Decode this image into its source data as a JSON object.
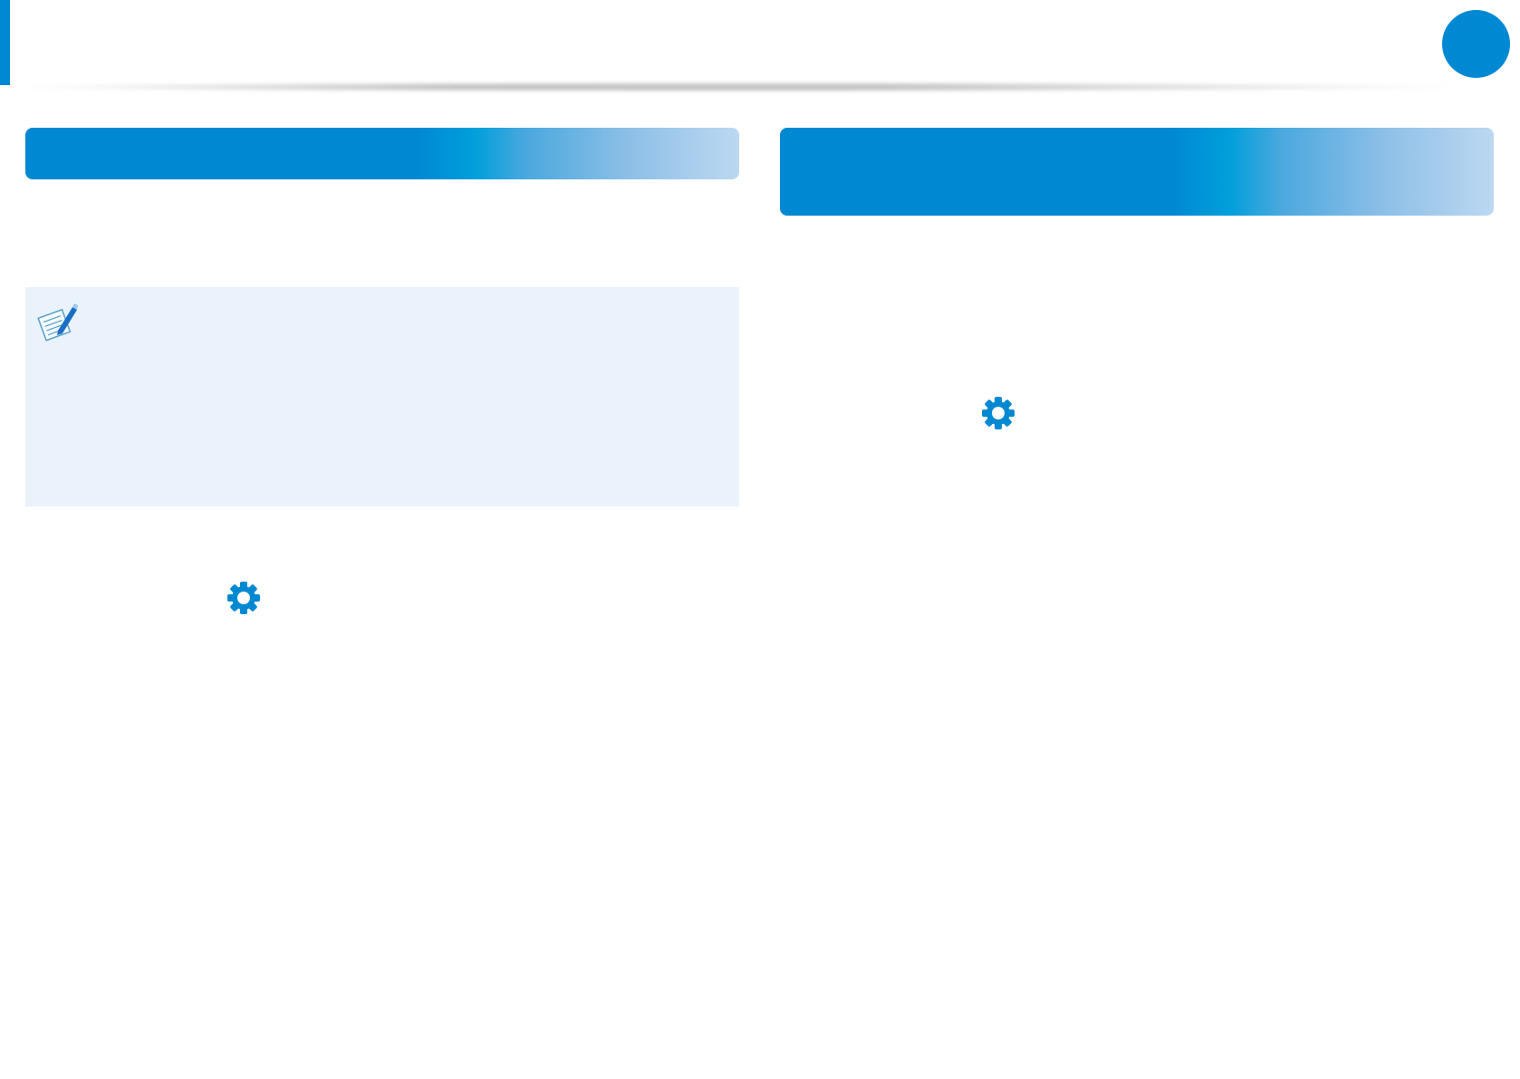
{
  "colors": {
    "accent": "#0089d2",
    "header_gradient_end": "#bcd8f1",
    "note_background": "#eaf3fb"
  },
  "icons": {
    "note": "note-pencil-icon",
    "settings": "gear-icon"
  }
}
